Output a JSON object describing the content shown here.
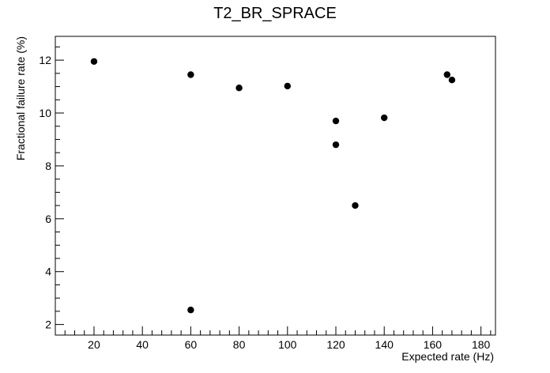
{
  "chart_data": {
    "type": "scatter",
    "title": "T2_BR_SPRACE",
    "xlabel": "Expected rate (Hz)",
    "ylabel": "Fractional failure rate (%)",
    "xlim": [
      4,
      186
    ],
    "ylim": [
      1.6,
      12.9
    ],
    "x_ticks": [
      20,
      40,
      60,
      80,
      100,
      120,
      140,
      160,
      180
    ],
    "y_ticks": [
      2,
      4,
      6,
      8,
      10,
      12
    ],
    "grid": false,
    "legend": "none",
    "marker_color": "#000000",
    "points": [
      {
        "x": 20,
        "y": 11.95
      },
      {
        "x": 60,
        "y": 11.45
      },
      {
        "x": 60,
        "y": 2.55
      },
      {
        "x": 80,
        "y": 10.95
      },
      {
        "x": 100,
        "y": 11.02
      },
      {
        "x": 120,
        "y": 9.7
      },
      {
        "x": 120,
        "y": 8.8
      },
      {
        "x": 128,
        "y": 6.5
      },
      {
        "x": 140,
        "y": 9.82
      },
      {
        "x": 166,
        "y": 11.45
      },
      {
        "x": 168,
        "y": 11.25
      }
    ]
  }
}
